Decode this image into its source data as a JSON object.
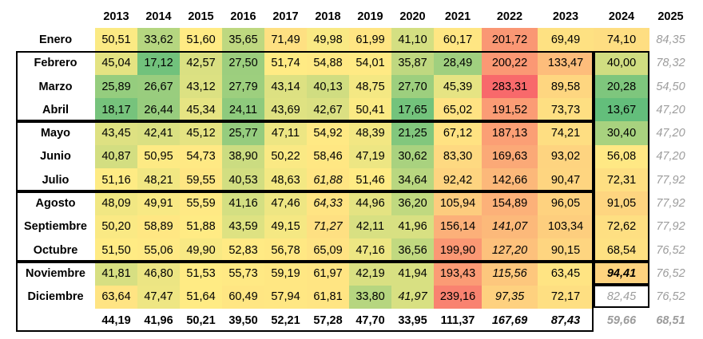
{
  "years": [
    "2013",
    "2014",
    "2015",
    "2016",
    "2017",
    "2018",
    "2019",
    "2020",
    "2021",
    "2022",
    "2023",
    "2024",
    "2025"
  ],
  "rows": [
    {
      "month": "Enero",
      "values": [
        "50,51",
        "33,62",
        "51,60",
        "35,65",
        "71,49",
        "49,98",
        "61,99",
        "41,10",
        "60,17",
        "201,72",
        "69,49",
        "74,10",
        "84,35"
      ]
    },
    {
      "month": "Febrero",
      "values": [
        "45,04",
        "17,12",
        "42,57",
        "27,50",
        "51,74",
        "54,88",
        "54,01",
        "35,87",
        "28,49",
        "200,22",
        "133,47",
        "40,00",
        "78,32"
      ]
    },
    {
      "month": "Marzo",
      "values": [
        "25,89",
        "26,67",
        "43,12",
        "27,79",
        "43,14",
        "40,13",
        "48,75",
        "27,70",
        "45,39",
        "283,31",
        "89,58",
        "20,28",
        "54,50"
      ]
    },
    {
      "month": "Abril",
      "values": [
        "18,17",
        "26,44",
        "45,34",
        "24,11",
        "43,69",
        "42,67",
        "50,41",
        "17,65",
        "65,02",
        "191,52",
        "73,73",
        "13,67",
        "47,20"
      ]
    },
    {
      "month": "Mayo",
      "values": [
        "43,45",
        "42,41",
        "45,12",
        "25,77",
        "47,11",
        "54,92",
        "48,39",
        "21,25",
        "67,12",
        "187,13",
        "74,21",
        "30,40",
        "47,20"
      ]
    },
    {
      "month": "Junio",
      "values": [
        "40,87",
        "50,95",
        "54,73",
        "38,90",
        "50,22",
        "58,46",
        "47,19",
        "30,62",
        "83,30",
        "169,63",
        "93,02",
        "56,08",
        "47,20"
      ]
    },
    {
      "month": "Julio",
      "values": [
        "51,16",
        "48,21",
        "59,55",
        "40,53",
        "48,63",
        "61,88",
        "51,46",
        "34,64",
        "92,42",
        "142,66",
        "90,47",
        "72,31",
        "77,92"
      ]
    },
    {
      "month": "Agosto",
      "values": [
        "48,09",
        "49,91",
        "55,59",
        "41,16",
        "47,46",
        "64,33",
        "44,96",
        "36,20",
        "105,94",
        "154,89",
        "96,05",
        "91,05",
        "77,92"
      ]
    },
    {
      "month": "Septiembre",
      "values": [
        "50,20",
        "58,89",
        "51,88",
        "43,59",
        "49,15",
        "71,27",
        "42,11",
        "41,96",
        "156,14",
        "141,07",
        "103,34",
        "72,62",
        "77,92"
      ]
    },
    {
      "month": "Octubre",
      "values": [
        "51,50",
        "55,06",
        "49,90",
        "52,83",
        "56,78",
        "65,09",
        "47,16",
        "36,56",
        "199,90",
        "127,20",
        "90,15",
        "68,54",
        "76,52"
      ]
    },
    {
      "month": "Noviembre",
      "values": [
        "41,81",
        "46,80",
        "51,53",
        "55,73",
        "59,19",
        "61,97",
        "42,19",
        "41,94",
        "193,43",
        "115,56",
        "63,45",
        "94,41",
        "76,52"
      ]
    },
    {
      "month": "Diciembre",
      "values": [
        "63,64",
        "47,47",
        "51,64",
        "60,49",
        "57,94",
        "61,81",
        "33,80",
        "41,97",
        "239,16",
        "97,35",
        "72,17",
        "82,45",
        "76,52"
      ]
    }
  ],
  "totals": [
    "44,19",
    "41,96",
    "50,21",
    "39,50",
    "52,21",
    "57,28",
    "47,70",
    "33,95",
    "111,37",
    "167,69",
    "87,43",
    "59,66",
    "68,51"
  ],
  "styles": {
    "italic_cells": [
      [
        6,
        5
      ],
      [
        7,
        5
      ],
      [
        8,
        5
      ],
      [
        8,
        9
      ],
      [
        9,
        9
      ],
      [
        10,
        9
      ],
      [
        11,
        9
      ],
      [
        11,
        7
      ],
      [
        10,
        11
      ],
      [
        11,
        11
      ]
    ],
    "bold_cells": [
      [
        10,
        11
      ]
    ],
    "grey_cells": [
      [
        11,
        11
      ]
    ],
    "italic_totals": [
      9,
      10
    ],
    "bold_totals": [
      9
    ],
    "grey_totals": [
      11,
      12
    ],
    "unshaded_columns": [
      12
    ]
  },
  "colors": {
    "scale_low": "#63be7b",
    "scale_mid": "#ffeb84",
    "scale_high": "#f8696b",
    "projected_text": "#9c9c9c"
  }
}
